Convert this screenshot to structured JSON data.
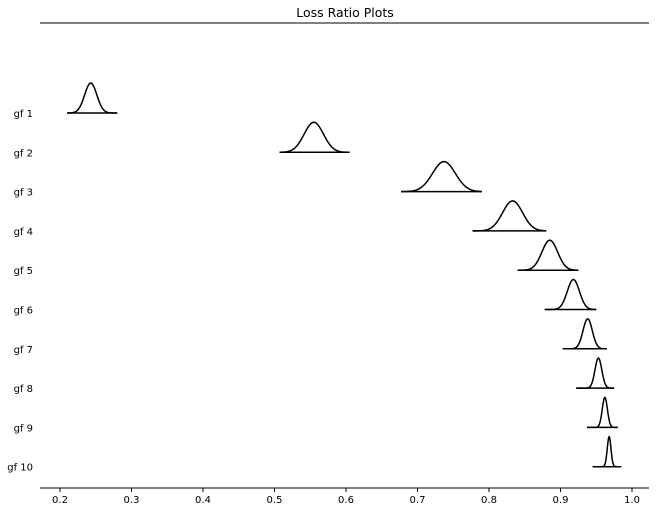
{
  "chart_data": {
    "type": "ridgeline",
    "title": "Loss Ratio Plots",
    "xlabel": "",
    "ylabel": "",
    "xlim": [
      0.17,
      1.027
    ],
    "xticks": [
      0.2,
      0.3,
      0.4,
      0.5,
      0.6,
      0.7,
      0.8,
      0.9,
      1.0
    ],
    "xtick_labels": [
      "0.2",
      "0.3",
      "0.4",
      "0.5",
      "0.6",
      "0.7",
      "0.8",
      "0.9",
      "1.0"
    ],
    "grid": false,
    "series": [
      {
        "name": "gf 1",
        "mean": 0.243,
        "sd": 0.0085,
        "min": 0.21,
        "max": 0.28
      },
      {
        "name": "gf 2",
        "mean": 0.555,
        "sd": 0.0135,
        "min": 0.507,
        "max": 0.605
      },
      {
        "name": "gf 3",
        "mean": 0.737,
        "sd": 0.016,
        "min": 0.677,
        "max": 0.79
      },
      {
        "name": "gf 4",
        "mean": 0.833,
        "sd": 0.014,
        "min": 0.777,
        "max": 0.88
      },
      {
        "name": "gf 5",
        "mean": 0.885,
        "sd": 0.011,
        "min": 0.84,
        "max": 0.925
      },
      {
        "name": "gf 6",
        "mean": 0.918,
        "sd": 0.0085,
        "min": 0.878,
        "max": 0.95
      },
      {
        "name": "gf 7",
        "mean": 0.938,
        "sd": 0.0065,
        "min": 0.903,
        "max": 0.965
      },
      {
        "name": "gf 8",
        "mean": 0.953,
        "sd": 0.0048,
        "min": 0.922,
        "max": 0.975
      },
      {
        "name": "gf 9",
        "mean": 0.962,
        "sd": 0.0036,
        "min": 0.937,
        "max": 0.98
      },
      {
        "name": "gf 10",
        "mean": 0.968,
        "sd": 0.0026,
        "min": 0.945,
        "max": 0.985
      }
    ]
  }
}
